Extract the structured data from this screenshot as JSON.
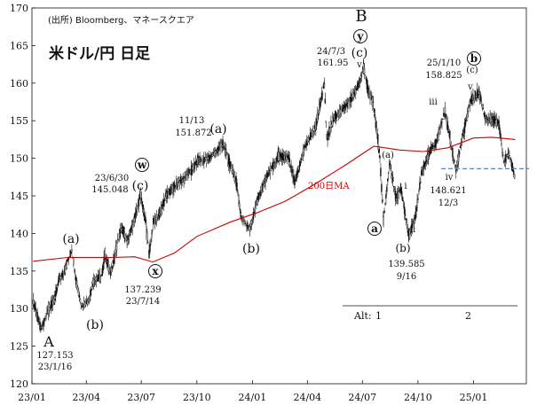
{
  "chart_data": {
    "type": "candlestick",
    "title": "米ドル/円 日足",
    "source": "(出所)  Bloomberg、マネースクエア",
    "ylim": [
      120,
      170
    ],
    "y_ticks": [
      "120",
      "125",
      "130",
      "135",
      "140",
      "145",
      "150",
      "155",
      "160",
      "165",
      "170"
    ],
    "x_ticks": [
      "23/01",
      "23/04",
      "23/07",
      "23/10",
      "24/01",
      "24/04",
      "24/07",
      "24/10",
      "25/01"
    ],
    "price_path": [
      {
        "date": "2023-01-03",
        "value": 130.8
      },
      {
        "date": "2023-01-16",
        "value": 127.2
      },
      {
        "date": "2023-01-27",
        "value": 129.8
      },
      {
        "date": "2023-02-08",
        "value": 131.2
      },
      {
        "date": "2023-02-15",
        "value": 133.9
      },
      {
        "date": "2023-02-25",
        "value": 135.2
      },
      {
        "date": "2023-03-08",
        "value": 137.9
      },
      {
        "date": "2023-03-15",
        "value": 133.8
      },
      {
        "date": "2023-03-24",
        "value": 130.4
      },
      {
        "date": "2023-04-05",
        "value": 131.2
      },
      {
        "date": "2023-04-12",
        "value": 133.6
      },
      {
        "date": "2023-04-26",
        "value": 134.2
      },
      {
        "date": "2023-05-02",
        "value": 137.3
      },
      {
        "date": "2023-05-11",
        "value": 134.5
      },
      {
        "date": "2023-05-20",
        "value": 138.0
      },
      {
        "date": "2023-05-30",
        "value": 140.8
      },
      {
        "date": "2023-06-08",
        "value": 138.9
      },
      {
        "date": "2023-06-20",
        "value": 142.0
      },
      {
        "date": "2023-06-30",
        "value": 145.048
      },
      {
        "date": "2023-07-08",
        "value": 141.6
      },
      {
        "date": "2023-07-14",
        "value": 137.239
      },
      {
        "date": "2023-07-21",
        "value": 141.5
      },
      {
        "date": "2023-07-31",
        "value": 142.5
      },
      {
        "date": "2023-08-10",
        "value": 144.8
      },
      {
        "date": "2023-08-25",
        "value": 146.3
      },
      {
        "date": "2023-09-08",
        "value": 147.2
      },
      {
        "date": "2023-09-22",
        "value": 148.4
      },
      {
        "date": "2023-10-03",
        "value": 149.7
      },
      {
        "date": "2023-10-20",
        "value": 149.9
      },
      {
        "date": "2023-11-13",
        "value": 151.872
      },
      {
        "date": "2023-11-24",
        "value": 149.4
      },
      {
        "date": "2023-12-05",
        "value": 147.0
      },
      {
        "date": "2023-12-14",
        "value": 141.9
      },
      {
        "date": "2023-12-28",
        "value": 140.7
      },
      {
        "date": "2024-01-10",
        "value": 144.6
      },
      {
        "date": "2024-01-25",
        "value": 147.6
      },
      {
        "date": "2024-02-13",
        "value": 150.2
      },
      {
        "date": "2024-03-01",
        "value": 150.0
      },
      {
        "date": "2024-03-11",
        "value": 146.6
      },
      {
        "date": "2024-03-27",
        "value": 151.4
      },
      {
        "date": "2024-04-15",
        "value": 154.3
      },
      {
        "date": "2024-04-29",
        "value": 159.8
      },
      {
        "date": "2024-05-03",
        "value": 152.8
      },
      {
        "date": "2024-05-17",
        "value": 155.6
      },
      {
        "date": "2024-06-03",
        "value": 156.9
      },
      {
        "date": "2024-06-20",
        "value": 158.8
      },
      {
        "date": "2024-07-03",
        "value": 161.95
      },
      {
        "date": "2024-07-11",
        "value": 159.0
      },
      {
        "date": "2024-07-19",
        "value": 157.4
      },
      {
        "date": "2024-07-30",
        "value": 150.0
      },
      {
        "date": "2024-08-05",
        "value": 141.7
      },
      {
        "date": "2024-08-15",
        "value": 149.3
      },
      {
        "date": "2024-08-26",
        "value": 144.6
      },
      {
        "date": "2024-09-03",
        "value": 145.8
      },
      {
        "date": "2024-09-16",
        "value": 139.585
      },
      {
        "date": "2024-09-27",
        "value": 142.3
      },
      {
        "date": "2024-10-08",
        "value": 148.4
      },
      {
        "date": "2024-10-18",
        "value": 150.3
      },
      {
        "date": "2024-10-31",
        "value": 152.1
      },
      {
        "date": "2024-11-15",
        "value": 156.3
      },
      {
        "date": "2024-11-26",
        "value": 151.2
      },
      {
        "date": "2024-12-03",
        "value": 148.621
      },
      {
        "date": "2024-12-16",
        "value": 153.6
      },
      {
        "date": "2024-12-27",
        "value": 157.6
      },
      {
        "date": "2025-01-10",
        "value": 158.825
      },
      {
        "date": "2025-01-20",
        "value": 155.5
      },
      {
        "date": "2025-02-03",
        "value": 155.0
      },
      {
        "date": "2025-02-12",
        "value": 154.5
      },
      {
        "date": "2025-02-20",
        "value": 149.6
      },
      {
        "date": "2025-02-28",
        "value": 150.6
      },
      {
        "date": "2025-03-11",
        "value": 147.3
      }
    ],
    "series": [
      {
        "name": "200日MA",
        "color": "#cc0000",
        "points": [
          {
            "date": "2023-01-03",
            "value": 136.3
          },
          {
            "date": "2023-03-01",
            "value": 136.8
          },
          {
            "date": "2023-05-15",
            "value": 136.8
          },
          {
            "date": "2023-06-20",
            "value": 136.9
          },
          {
            "date": "2023-07-20",
            "value": 136.2
          },
          {
            "date": "2023-08-25",
            "value": 137.4
          },
          {
            "date": "2023-10-01",
            "value": 139.6
          },
          {
            "date": "2023-11-25",
            "value": 141.5
          },
          {
            "date": "2024-01-10",
            "value": 142.8
          },
          {
            "date": "2024-02-25",
            "value": 144.3
          },
          {
            "date": "2024-04-10",
            "value": 146.4
          },
          {
            "date": "2024-06-01",
            "value": 149.0
          },
          {
            "date": "2024-07-20",
            "value": 151.6
          },
          {
            "date": "2024-09-01",
            "value": 151.1
          },
          {
            "date": "2024-10-10",
            "value": 150.9
          },
          {
            "date": "2024-11-20",
            "value": 151.4
          },
          {
            "date": "2025-01-01",
            "value": 152.7
          },
          {
            "date": "2025-02-01",
            "value": 152.8
          },
          {
            "date": "2025-03-11",
            "value": 152.5
          }
        ]
      }
    ],
    "reference_line": {
      "value": 148.621,
      "style": "dashed",
      "color": "#5a8ec8"
    },
    "annotations": [
      {
        "date": "2023-01-16",
        "value": 127.153,
        "label": "127.153",
        "date_label": "23/1/16",
        "wave": "A"
      },
      {
        "date": "2023-03-08",
        "value": 137.9,
        "wave": "(a)"
      },
      {
        "date": "2023-03-24",
        "value": 130.4,
        "wave": "(b)"
      },
      {
        "date": "2023-06-30",
        "value": 145.048,
        "label": "145.048",
        "date_label": "23/6/30",
        "wave": "(c)",
        "circled": "w"
      },
      {
        "date": "2023-07-14",
        "value": 137.239,
        "label": "137.239",
        "date_label": "23/7/14",
        "circled": "x"
      },
      {
        "date": "2023-11-13",
        "value": 151.872,
        "label": "151.872",
        "date_label": "11/13",
        "wave": "(a)"
      },
      {
        "date": "2023-12-28",
        "value": 140.7,
        "wave": "(b)"
      },
      {
        "date": "2024-07-03",
        "value": 161.95,
        "label": "161.95",
        "date_label": "24/7/3",
        "wave": "B",
        "circled": "y",
        "sub": "(c)",
        "minor": "v"
      },
      {
        "date": "2024-08-05",
        "value": 141.7,
        "circled": "a"
      },
      {
        "date": "2024-08-15",
        "value": 149.3,
        "wave": "(a)"
      },
      {
        "date": "2024-08-26",
        "value": 144.6,
        "minor": "i"
      },
      {
        "date": "2024-09-16",
        "value": 139.585,
        "label": "139.585",
        "date_label": "9/16",
        "wave": "(b)",
        "minor": "ii"
      },
      {
        "date": "2024-11-15",
        "value": 156.3,
        "minor": "iii"
      },
      {
        "date": "2024-12-03",
        "value": 148.621,
        "label": "148.621",
        "date_label": "12/3",
        "minor": "iv"
      },
      {
        "date": "2025-01-10",
        "value": 158.825,
        "label": "158.825",
        "date_label": "25/1/10",
        "circled": "b",
        "sub": "(c)",
        "minor": "v"
      }
    ],
    "alt_count": {
      "label": "Alt:",
      "seg1": "1",
      "seg2": "2"
    }
  }
}
